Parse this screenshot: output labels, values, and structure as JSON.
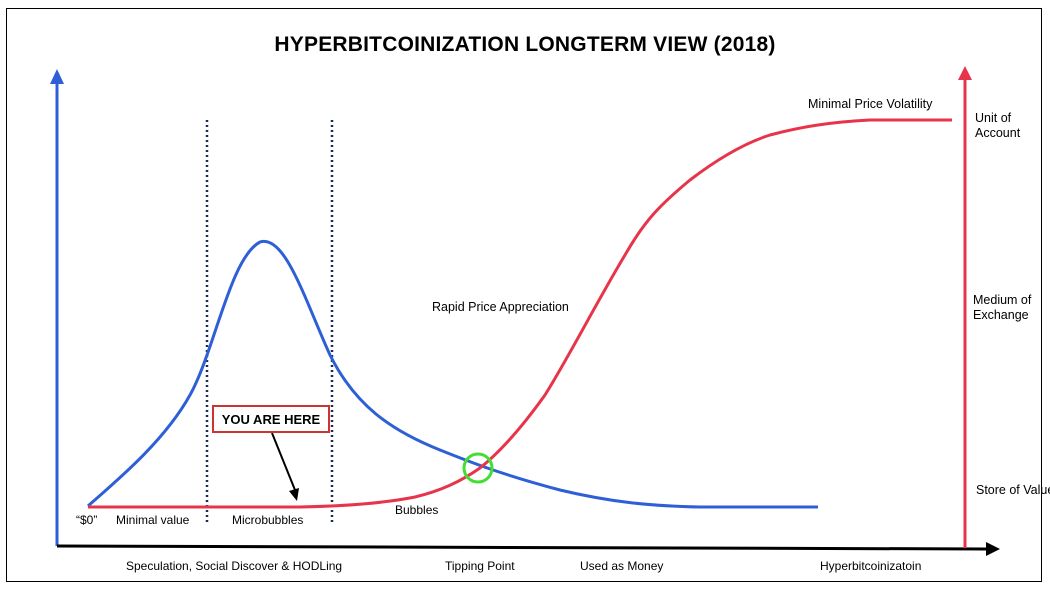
{
  "title": "HYPERBITCOINIZATION LONGTERM VIEW (2018)",
  "colors": {
    "blue_curve": "#2f5fd6",
    "red_curve": "#e8344a",
    "tipping_circle": "#44dd33",
    "here_box_border": "#cc3333"
  },
  "stage_labels": {
    "zero": "“$0”",
    "minimal_value": "Minimal value",
    "microbubbles": "Microbubbles",
    "bubbles": "Bubbles",
    "rapid_price_appreciation": "Rapid Price Appreciation",
    "minimal_price_volatility": "Minimal Price Volatility"
  },
  "marker": {
    "label": "YOU ARE HERE"
  },
  "x_axis_labels": {
    "speculation": "Speculation, Social Discover & HODLing",
    "tipping_point": "Tipping Point",
    "used_as_money": "Used as Money",
    "hyperbitcoinization": "Hyperbitcoinizatoin"
  },
  "right_axis_labels": {
    "unit_of_account": "Unit of Account",
    "medium_of_exchange": "Medium of Exchange",
    "store_of_value": "Store of Value"
  }
}
